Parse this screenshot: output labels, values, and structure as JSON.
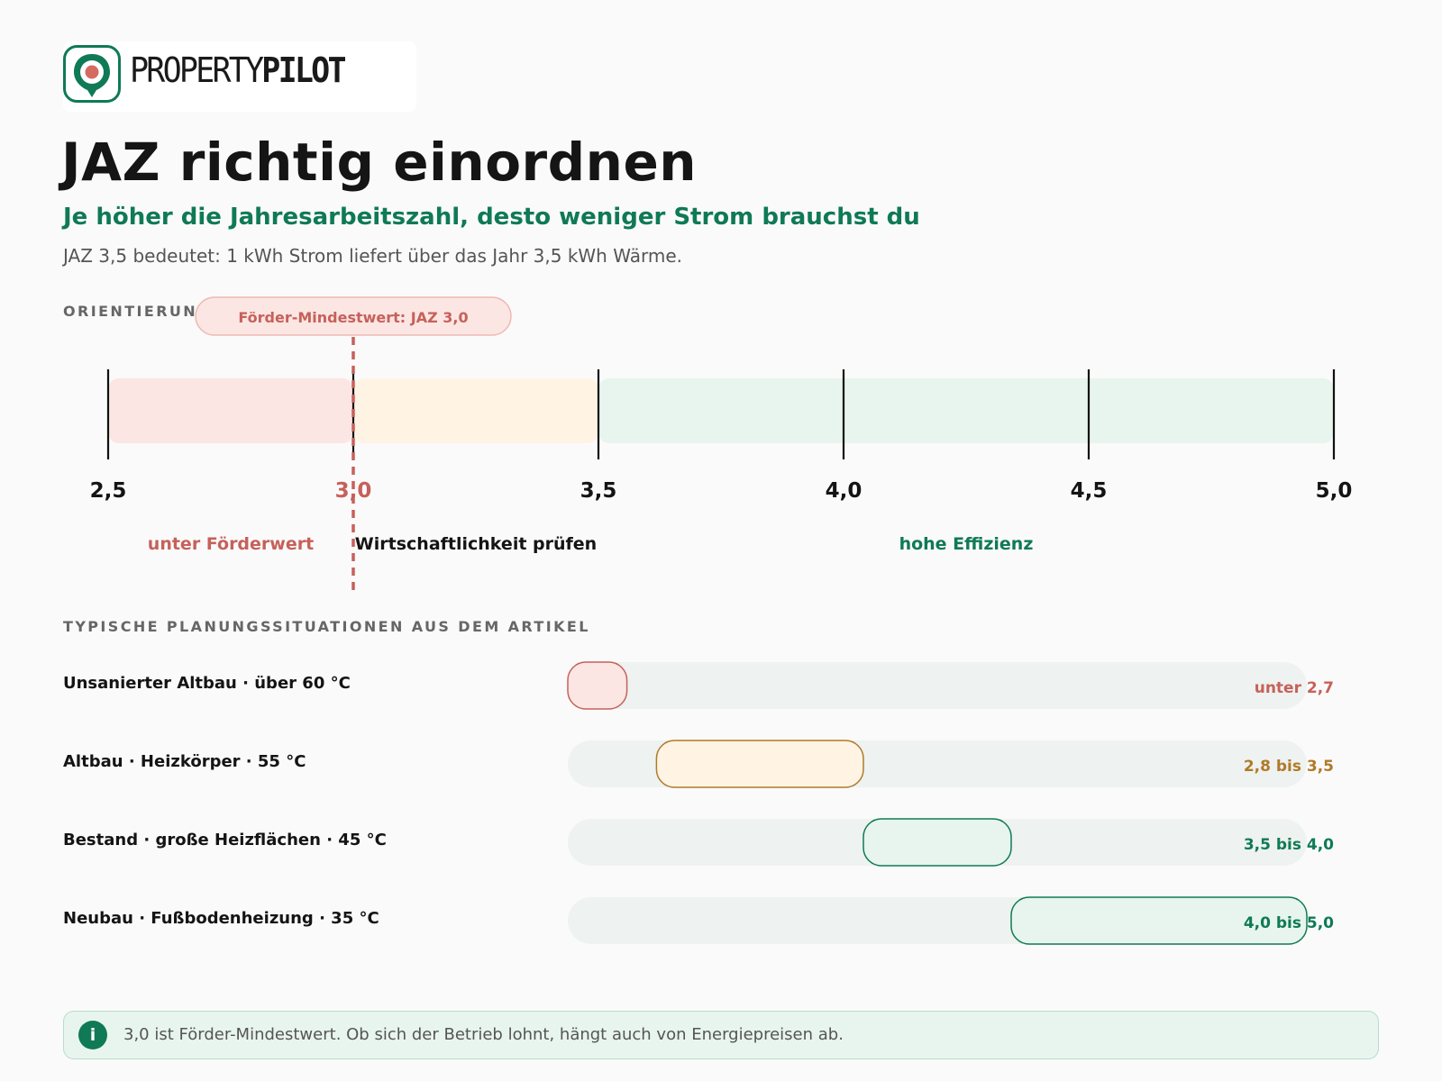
{
  "brand": {
    "name_regular": "PROPERTY",
    "name_bold": "PILOT"
  },
  "header": {
    "title": "JAZ richtig einordnen",
    "subtitle": "Je höher die Jahresarbeitszahl, desto weniger Strom brauchst du",
    "description": "JAZ 3,5 bedeutet: 1 kWh Strom liefert über das Jahr 3,5 kWh Wärme."
  },
  "colors": {
    "red": "#c6615a",
    "red_fill": "#fbe6e3",
    "amber": "#b07a28",
    "amber_fill": "#fff4e4",
    "green": "#0f7a55",
    "green_fill": "#e7f5ee",
    "track": "#eef2f0"
  },
  "chart_data": [
    {
      "type": "bar",
      "section_label": "ORIENTIERUNG",
      "xlim": [
        2.5,
        5.0
      ],
      "ticks": [
        2.5,
        3.0,
        3.5,
        4.0,
        4.5,
        5.0
      ],
      "tick_labels": [
        "2,5",
        "3,0",
        "3,5",
        "4,0",
        "4,5",
        "5,0"
      ],
      "zones": [
        {
          "from": 2.5,
          "to": 3.0,
          "label": "unter Förderwert",
          "color": "red"
        },
        {
          "from": 3.0,
          "to": 3.5,
          "label": "Wirtschaftlichkeit prüfen",
          "color": "amber"
        },
        {
          "from": 3.5,
          "to": 5.0,
          "label": "hohe Effizienz",
          "color": "green"
        }
      ],
      "threshold": {
        "value": 3.0,
        "label": "Förder-Mindestwert: JAZ 3,0"
      }
    },
    {
      "type": "bar",
      "section_label": "TYPISCHE PLANUNGSSITUATIONEN AUS DEM ARTIKEL",
      "xlim": [
        2.5,
        5.0
      ],
      "ranges": [
        {
          "category": "Unsanierter Altbau · über 60 °C",
          "from": 2.5,
          "to": 2.7,
          "value_label": "unter 2,7",
          "color": "red"
        },
        {
          "category": "Altbau · Heizkörper · 55 °C",
          "from": 2.8,
          "to": 3.5,
          "value_label": "2,8 bis 3,5",
          "color": "amber"
        },
        {
          "category": "Bestand · große Heizflächen · 45 °C",
          "from": 3.5,
          "to": 4.0,
          "value_label": "3,5 bis 4,0",
          "color": "green"
        },
        {
          "category": "Neubau · Fußbodenheizung · 35 °C",
          "from": 4.0,
          "to": 5.0,
          "value_label": "4,0 bis 5,0",
          "color": "green"
        }
      ]
    }
  ],
  "info": {
    "icon": "info-icon",
    "icon_glyph": "i",
    "text": "3,0 ist Förder-Mindestwert. Ob sich der Betrieb lohnt, hängt auch von Energiepreisen ab."
  }
}
